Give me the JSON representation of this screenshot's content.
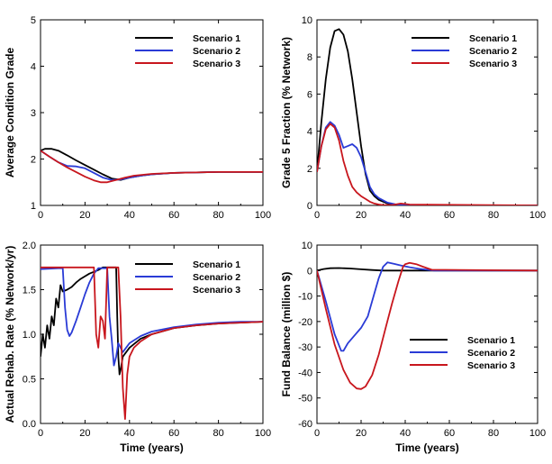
{
  "colors": {
    "scenario_1": "#000000",
    "scenario_2": "#2a3bd6",
    "scenario_3": "#c8161d"
  },
  "chart_data": [
    {
      "type": "line",
      "title": "",
      "xlabel": "",
      "ylabel": "Average Condition Grade",
      "xlim": [
        0,
        100
      ],
      "ylim": [
        1,
        5
      ],
      "xticks": [
        "0",
        "20",
        "40",
        "60",
        "80",
        "100"
      ],
      "yticks": [
        "1",
        "2",
        "3",
        "4",
        "5"
      ],
      "legend_position": "top-right",
      "series": [
        {
          "name": "Scenario 1",
          "color": "#000000",
          "x": [
            0,
            2,
            5,
            8,
            12,
            16,
            20,
            24,
            28,
            32,
            36,
            40,
            45,
            50,
            60,
            70,
            80,
            100
          ],
          "y": [
            2.18,
            2.22,
            2.22,
            2.18,
            2.08,
            1.97,
            1.87,
            1.77,
            1.67,
            1.58,
            1.55,
            1.6,
            1.64,
            1.67,
            1.7,
            1.71,
            1.72,
            1.72
          ]
        },
        {
          "name": "Scenario 2",
          "color": "#2a3bd6",
          "x": [
            0,
            4,
            8,
            12,
            16,
            20,
            24,
            28,
            32,
            36,
            40,
            45,
            50,
            60,
            70,
            80,
            100
          ],
          "y": [
            2.18,
            2.05,
            1.93,
            1.85,
            1.84,
            1.8,
            1.7,
            1.6,
            1.55,
            1.56,
            1.6,
            1.64,
            1.67,
            1.7,
            1.71,
            1.72,
            1.72
          ]
        },
        {
          "name": "Scenario 3",
          "color": "#c8161d",
          "x": [
            0,
            4,
            8,
            12,
            16,
            20,
            24,
            27,
            30,
            34,
            38,
            42,
            46,
            50,
            60,
            70,
            80,
            100
          ],
          "y": [
            2.18,
            2.05,
            1.93,
            1.82,
            1.72,
            1.62,
            1.54,
            1.5,
            1.5,
            1.55,
            1.6,
            1.64,
            1.66,
            1.68,
            1.7,
            1.71,
            1.72,
            1.72
          ]
        }
      ]
    },
    {
      "type": "line",
      "title": "",
      "xlabel": "",
      "ylabel": "Grade 5 Fraction (% Network)",
      "xlim": [
        0,
        100
      ],
      "ylim": [
        0,
        10
      ],
      "xticks": [
        "0",
        "20",
        "40",
        "60",
        "80",
        "100"
      ],
      "yticks": [
        "0",
        "2",
        "4",
        "6",
        "8",
        "10"
      ],
      "legend_position": "top-right",
      "series": [
        {
          "name": "Scenario 1",
          "color": "#000000",
          "x": [
            0,
            2,
            4,
            6,
            8,
            10,
            12,
            14,
            16,
            18,
            20,
            22,
            24,
            26,
            28,
            32,
            36,
            40,
            100
          ],
          "y": [
            1.8,
            4.5,
            6.8,
            8.5,
            9.4,
            9.5,
            9.2,
            8.3,
            6.8,
            5.0,
            3.2,
            1.7,
            0.8,
            0.5,
            0.3,
            0.1,
            0.03,
            0.0,
            0.0
          ]
        },
        {
          "name": "Scenario 2",
          "color": "#2a3bd6",
          "x": [
            0,
            2,
            4,
            6,
            8,
            10,
            12,
            14,
            16,
            18,
            20,
            22,
            24,
            26,
            28,
            32,
            36,
            40,
            100
          ],
          "y": [
            1.8,
            3.2,
            4.2,
            4.5,
            4.3,
            3.8,
            3.1,
            3.2,
            3.3,
            3.1,
            2.6,
            1.8,
            1.0,
            0.6,
            0.4,
            0.15,
            0.05,
            0.0,
            0.0
          ]
        },
        {
          "name": "Scenario 3",
          "color": "#c8161d",
          "x": [
            0,
            2,
            4,
            6,
            8,
            10,
            12,
            14,
            16,
            18,
            20,
            22,
            24,
            26,
            28,
            30,
            34,
            38,
            42,
            100
          ],
          "y": [
            1.8,
            3.2,
            4.1,
            4.4,
            4.2,
            3.5,
            2.4,
            1.6,
            1.0,
            0.7,
            0.5,
            0.35,
            0.2,
            0.1,
            0.05,
            0.02,
            0.02,
            0.1,
            0.05,
            0.0
          ]
        }
      ]
    },
    {
      "type": "line",
      "title": "",
      "xlabel": "Time (years)",
      "ylabel": "Actual Rehab. Rate (% Network/yr)",
      "xlim": [
        0,
        100
      ],
      "ylim": [
        0,
        2
      ],
      "xticks": [
        "0",
        "20",
        "40",
        "60",
        "80",
        "100"
      ],
      "yticks": [
        "0.0",
        "0.5",
        "1.0",
        "1.5",
        "2.0"
      ],
      "legend_position": "top-right",
      "series": [
        {
          "name": "Scenario 1",
          "color": "#000000",
          "x": [
            0,
            1,
            2,
            3,
            4,
            5,
            6,
            7,
            8,
            9,
            10,
            12,
            14,
            16,
            18,
            20,
            22,
            24,
            26,
            28,
            30,
            31,
            32,
            33,
            34,
            34.5,
            35,
            35.5,
            36,
            37,
            40,
            45,
            50,
            60,
            70,
            80,
            90,
            100
          ],
          "y": [
            0.75,
            1.0,
            0.85,
            1.1,
            0.95,
            1.2,
            1.1,
            1.4,
            1.3,
            1.55,
            1.48,
            1.5,
            1.53,
            1.58,
            1.62,
            1.65,
            1.68,
            1.7,
            1.72,
            1.75,
            1.75,
            1.75,
            1.75,
            1.75,
            1.75,
            1.2,
            0.75,
            0.55,
            0.6,
            0.75,
            0.85,
            0.95,
            1.0,
            1.07,
            1.1,
            1.12,
            1.13,
            1.14
          ]
        },
        {
          "name": "Scenario 2",
          "color": "#2a3bd6",
          "x": [
            0,
            8,
            10,
            11,
            12,
            13,
            14,
            16,
            18,
            20,
            22,
            24,
            26,
            28,
            30,
            31,
            32,
            33,
            34,
            35,
            36,
            37,
            40,
            45,
            50,
            60,
            70,
            80,
            90,
            100
          ],
          "y": [
            1.73,
            1.74,
            1.74,
            1.3,
            1.05,
            0.98,
            1.02,
            1.15,
            1.3,
            1.45,
            1.58,
            1.68,
            1.74,
            1.74,
            1.74,
            1.2,
            0.95,
            0.65,
            0.75,
            0.9,
            0.85,
            0.8,
            0.9,
            0.98,
            1.03,
            1.08,
            1.11,
            1.13,
            1.14,
            1.14
          ]
        },
        {
          "name": "Scenario 3",
          "color": "#c8161d",
          "x": [
            0,
            10,
            20,
            24,
            25,
            26,
            27,
            28,
            29,
            30,
            32,
            35,
            36,
            37,
            38,
            39,
            40,
            42,
            45,
            50,
            60,
            70,
            80,
            90,
            100
          ],
          "y": [
            1.75,
            1.75,
            1.75,
            1.75,
            1.0,
            0.85,
            1.2,
            1.15,
            0.95,
            1.75,
            1.75,
            1.75,
            1.2,
            0.4,
            0.05,
            0.55,
            0.75,
            0.85,
            0.92,
            1.0,
            1.07,
            1.1,
            1.12,
            1.13,
            1.14
          ]
        }
      ]
    },
    {
      "type": "line",
      "title": "",
      "xlabel": "Time (years)",
      "ylabel": "Fund Balance (million $)",
      "xlim": [
        0,
        100
      ],
      "ylim": [
        -60,
        10
      ],
      "xticks": [
        "0",
        "20",
        "40",
        "60",
        "80",
        "100"
      ],
      "yticks": [
        "-60",
        "-50",
        "-40",
        "-30",
        "-20",
        "-10",
        "0",
        "10"
      ],
      "legend_position": "bottom-right",
      "series": [
        {
          "name": "Scenario 1",
          "color": "#000000",
          "x": [
            0,
            3,
            6,
            10,
            15,
            20,
            25,
            30,
            35,
            100
          ],
          "y": [
            0,
            0.6,
            0.9,
            1.0,
            0.8,
            0.5,
            0.2,
            0.0,
            0.0,
            0.0
          ]
        },
        {
          "name": "Scenario 2",
          "color": "#2a3bd6",
          "x": [
            0,
            4,
            8,
            11,
            12,
            14,
            17,
            20,
            23,
            26,
            28,
            30,
            32,
            35,
            38,
            42,
            46,
            50,
            53,
            100
          ],
          "y": [
            0,
            -12,
            -25,
            -31.5,
            -31.5,
            -28.5,
            -25.5,
            -22.5,
            -18,
            -9,
            -3,
            1.5,
            3.2,
            2.6,
            2.0,
            1.3,
            0.7,
            0.3,
            0.0,
            0.0
          ]
        },
        {
          "name": "Scenario 3",
          "color": "#c8161d",
          "x": [
            0,
            4,
            8,
            12,
            15,
            18,
            20,
            22,
            25,
            28,
            31,
            34,
            37,
            39,
            40,
            42,
            45,
            48,
            52,
            100
          ],
          "y": [
            0,
            -15,
            -29,
            -39,
            -44,
            -46.3,
            -46.5,
            -45.5,
            -41,
            -33,
            -23,
            -13,
            -4,
            1.5,
            2.5,
            3.0,
            2.5,
            1.5,
            0.3,
            0.0
          ]
        }
      ]
    }
  ]
}
